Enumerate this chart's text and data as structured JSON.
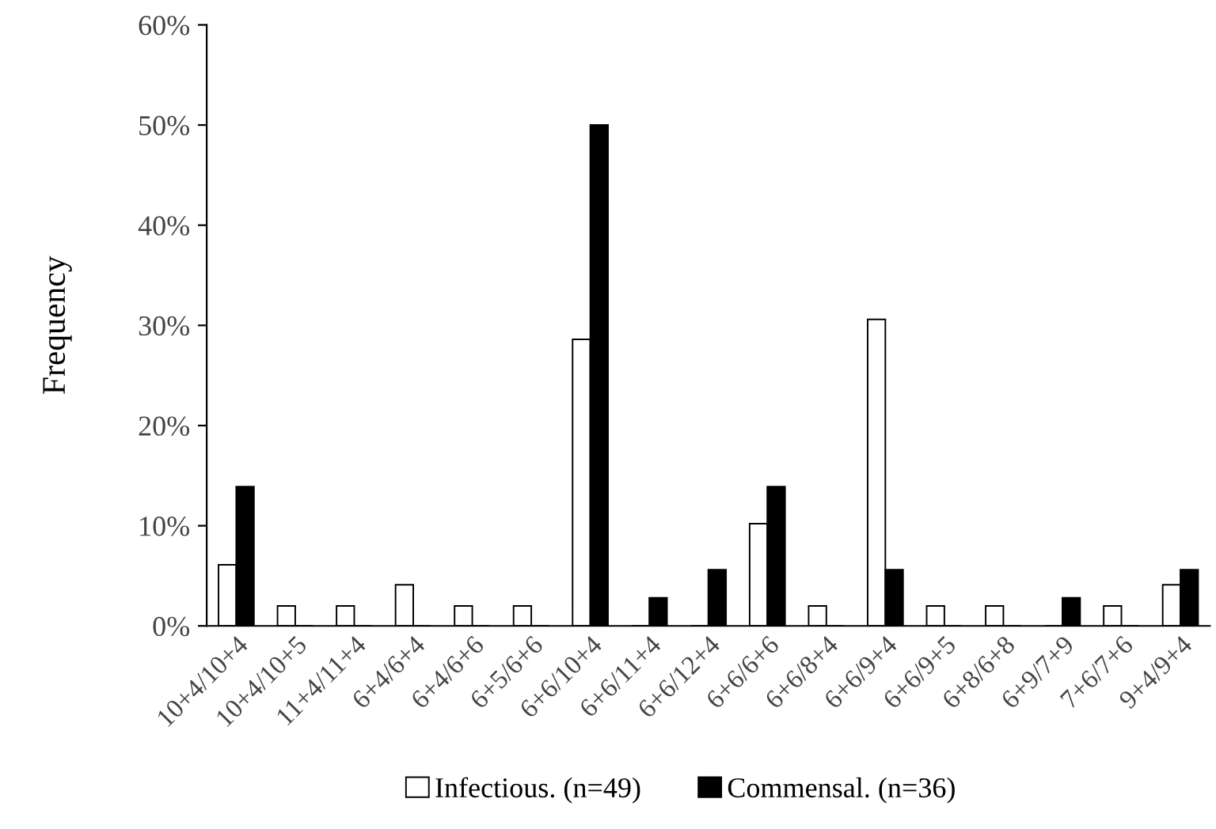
{
  "chart_data": {
    "type": "bar",
    "ylabel": "Frequency",
    "categories": [
      "10+4/10+4",
      "10+4/10+5",
      "11+4/11+4",
      "6+4/6+4",
      "6+4/6+6",
      "6+5/6+6",
      "6+6/10+4",
      "6+6/11+4",
      "6+6/12+4",
      "6+6/6+6",
      "6+6/8+4",
      "6+6/9+4",
      "6+6/9+5",
      "6+8/6+8",
      "6+9/7+9",
      "7+6/7+6",
      "9+4/9+4"
    ],
    "series": [
      {
        "name": "Infectious. (n=49)",
        "color": "#ffffff",
        "values": [
          6.1,
          2.0,
          2.0,
          4.1,
          2.0,
          2.0,
          28.6,
          0,
          0,
          10.2,
          2.0,
          30.6,
          2.0,
          2.0,
          0,
          2.0,
          4.1
        ]
      },
      {
        "name": "Commensal. (n=36)",
        "color": "#000000",
        "values": [
          13.9,
          0,
          0,
          0,
          0,
          0,
          50.0,
          2.8,
          5.6,
          13.9,
          0,
          5.6,
          0,
          0,
          2.8,
          0,
          5.6
        ]
      }
    ],
    "ylim": [
      0,
      60
    ],
    "yticks": [
      {
        "value": 0,
        "label": "0%"
      },
      {
        "value": 10,
        "label": "10%"
      },
      {
        "value": 20,
        "label": "20%"
      },
      {
        "value": 30,
        "label": "30%"
      },
      {
        "value": 40,
        "label": "40%"
      },
      {
        "value": 50,
        "label": "50%"
      },
      {
        "value": 60,
        "label": "60%"
      }
    ],
    "grid": false,
    "legend": "bottom"
  }
}
